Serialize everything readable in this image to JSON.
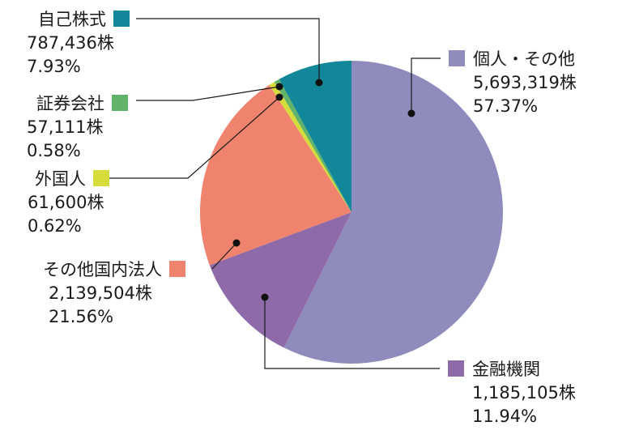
{
  "chart_data": {
    "type": "pie",
    "title": "",
    "unit": "株",
    "slices": [
      {
        "key": "individual",
        "name": "個人・その他",
        "shares": "5,693,319株",
        "percent_label": "57.37%",
        "value": 57.37,
        "color": "#8f8cbd"
      },
      {
        "key": "financial",
        "name": "金融機関",
        "shares": "1,185,105株",
        "percent_label": "11.94%",
        "value": 11.94,
        "color": "#8f6aa8"
      },
      {
        "key": "domestic",
        "name": "その他国内法人",
        "shares": "2,139,504株",
        "percent_label": "21.56%",
        "value": 21.56,
        "color": "#ef836d"
      },
      {
        "key": "foreign",
        "name": "外国人",
        "shares": "61,600株",
        "percent_label": "0.62%",
        "value": 0.62,
        "color": "#d6dc3a"
      },
      {
        "key": "securities",
        "name": "証券会社",
        "shares": "57,111株",
        "percent_label": "0.58%",
        "value": 0.58,
        "color": "#62b36a"
      },
      {
        "key": "treasury",
        "name": "自己株式",
        "shares": "787,436株",
        "percent_label": "7.93%",
        "value": 7.93,
        "color": "#13879a"
      }
    ]
  }
}
